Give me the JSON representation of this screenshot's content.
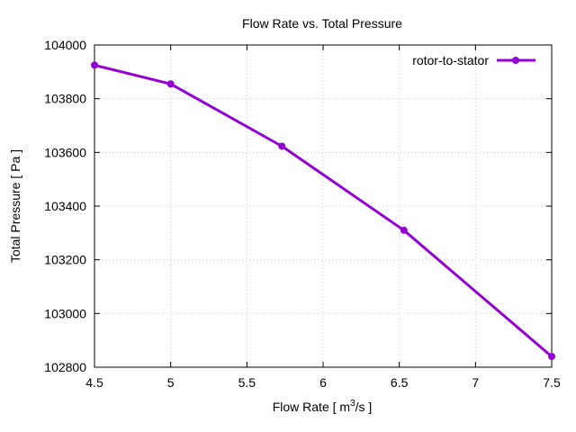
{
  "chart_data": {
    "type": "line",
    "title": "Flow Rate vs. Total Pressure",
    "xlabel_main": "Flow Rate [ m",
    "xlabel_sup": "3",
    "xlabel_tail": "/s ]",
    "ylabel": "Total Pressure [ Pa ]",
    "xlim": [
      4.5,
      7.5
    ],
    "ylim": [
      102800,
      104000
    ],
    "xticks": [
      4.5,
      5,
      5.5,
      6,
      6.5,
      7,
      7.5
    ],
    "xtick_labels": [
      "4.5",
      "5",
      "5.5",
      "6",
      "6.5",
      "7",
      "7.5"
    ],
    "yticks": [
      102800,
      103000,
      103200,
      103400,
      103600,
      103800,
      104000
    ],
    "ytick_labels": [
      "102800",
      "103000",
      "103200",
      "103400",
      "103600",
      "103800",
      "104000"
    ],
    "grid": true,
    "legend_position": "top-right",
    "series": [
      {
        "name": "rotor-to-stator",
        "color": "#9400d3",
        "marker": "circle",
        "x": [
          4.5,
          5.0,
          5.73,
          6.53,
          7.5
        ],
        "y": [
          103925,
          103855,
          103623,
          103310,
          102840
        ]
      }
    ]
  }
}
